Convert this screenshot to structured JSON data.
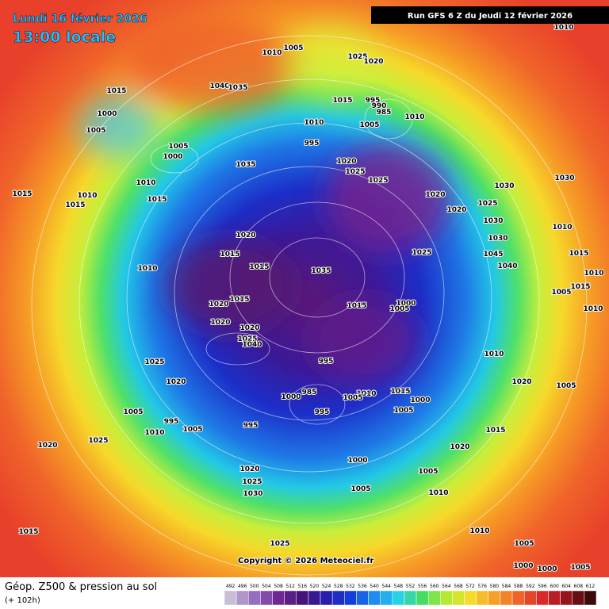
{
  "header": {
    "date": "Lundi 16 février 2026",
    "time": "13:00 locale",
    "run": "Run GFS 6 Z du Jeudi 12 février 2026"
  },
  "map": {
    "copyright": "Copyright © 2026 Meteociel.fr",
    "pressure_labels": [
      "1010",
      "1005",
      "1025",
      "1020",
      "1010",
      "1040",
      "1035",
      "1015",
      "1015",
      "995",
      "990",
      "985",
      "1000",
      "1005",
      "1010",
      "1005",
      "1010",
      "995",
      "1005",
      "1000",
      "1035",
      "1020",
      "1025",
      "1025",
      "1030",
      "1030",
      "1020",
      "1020",
      "1025",
      "1015",
      "1010",
      "1015",
      "1010",
      "1015",
      "1030",
      "1010",
      "1030",
      "1020",
      "1015",
      "1015",
      "1035",
      "1025",
      "1010",
      "1040",
      "1045",
      "1020",
      "1015",
      "1015",
      "1000",
      "1005",
      "1005",
      "1010",
      "1020",
      "1020",
      "1025",
      "1040",
      "995",
      "1025",
      "1020",
      "1010",
      "1020",
      "1005",
      "985",
      "1000",
      "995",
      "1010",
      "1005",
      "1015",
      "1000",
      "1005",
      "1005",
      "995",
      "1005",
      "1010",
      "995",
      "1025",
      "1020",
      "1015",
      "1020",
      "1000",
      "1005",
      "1020",
      "1025",
      "1030",
      "1010",
      "1005",
      "1015",
      "1025",
      "1010",
      "1005",
      "1000",
      "1000",
      "1005",
      "1015",
      "1010",
      "1015"
    ]
  },
  "footer": {
    "title": "Géop. Z500 & pression au sol",
    "subtitle": "(+ 102h)",
    "scale": [
      492,
      496,
      500,
      504,
      508,
      512,
      516,
      520,
      524,
      528,
      532,
      536,
      540,
      544,
      548,
      552,
      556,
      560,
      564,
      568,
      572,
      576,
      580,
      584,
      588,
      592,
      596,
      600,
      604,
      608,
      612
    ]
  }
}
